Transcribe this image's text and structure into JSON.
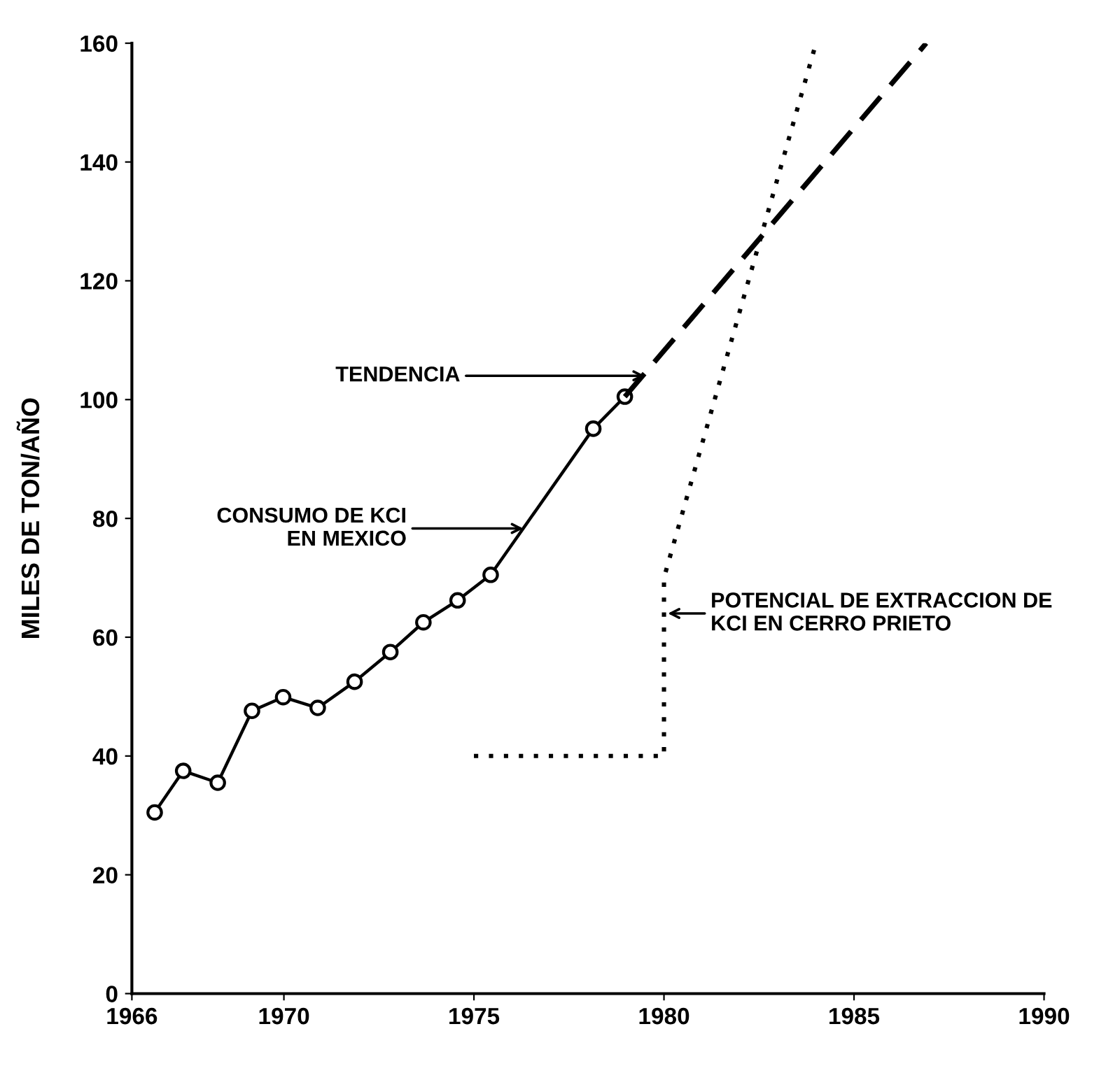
{
  "chart_data": {
    "type": "line",
    "ylabel": "MILES DE TON/AÑO",
    "xlim": [
      1966,
      1990
    ],
    "xticks": [
      1966,
      1970,
      1975,
      1980,
      1985,
      1990
    ],
    "ylim": [
      0,
      160
    ],
    "yticks": [
      0,
      20,
      40,
      60,
      80,
      100,
      120,
      140,
      160
    ],
    "grid": false,
    "series": [
      {
        "color": "#000000",
        "marker": "circle",
        "line_style": "solid",
        "x": [
          1966.6,
          1967.35,
          1968.26,
          1969.16,
          1969.98,
          1970.89,
          1971.86,
          1972.8,
          1973.67,
          1974.57,
          1975.44,
          1978.14,
          1978.97
        ],
        "values": [
          30.5,
          37.5,
          35.5,
          47.6,
          49.9,
          48.1,
          52.5,
          57.5,
          62.5,
          66.2,
          70.5,
          95.1,
          100.5
        ]
      },
      {
        "color": "#000000",
        "marker": "none",
        "line_style": "dashed",
        "x": [
          1978.97,
          1986.9
        ],
        "values": [
          100.5,
          160
        ]
      },
      {
        "color": "#000000",
        "marker": "none",
        "line_style": "dotted",
        "x": [
          1975,
          1980,
          1980,
          1984
        ],
        "values": [
          40,
          40,
          70,
          160
        ]
      }
    ],
    "annotations": [
      {
        "text": "TENDENCIA",
        "x": 1979.5,
        "y": 104
      },
      {
        "text": "CONSUMO DE KCI\nEN MEXICO",
        "x": 1976.3,
        "y": 78.3
      },
      {
        "text": "POTENCIAL DE EXTRACCION DE\nKCI EN CERRO PRIETO",
        "x": 1980.1,
        "y": 64
      }
    ]
  }
}
